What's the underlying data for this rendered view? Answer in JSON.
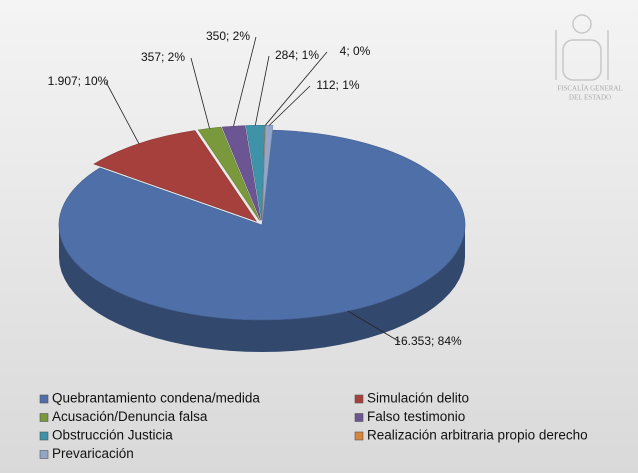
{
  "chart_data": {
    "type": "pie3d",
    "categories": [
      "Quebrantamiento condena/medida",
      "Simulación delito",
      "Acusación/Denuncia falsa",
      "Falso testimonio",
      "Obstrucción Justicia",
      "Realización arbitraria propio derecho",
      "Prevaricación"
    ],
    "values": [
      16353,
      1907,
      357,
      350,
      284,
      4,
      112
    ],
    "value_labels": [
      "16.353; 84%",
      "1.907; 10%",
      "357; 2%",
      "350; 2%",
      "284; 1%",
      "4; 0%",
      "112; 1%"
    ],
    "colors": [
      "#4f6fa8",
      "#a5403d",
      "#7a983c",
      "#6b5592",
      "#3e93a9",
      "#d9843b",
      "#93a6c8"
    ],
    "legend": "bottom",
    "watermark": [
      "FISCALÍA GENERAL",
      "DEL ESTADO"
    ]
  }
}
